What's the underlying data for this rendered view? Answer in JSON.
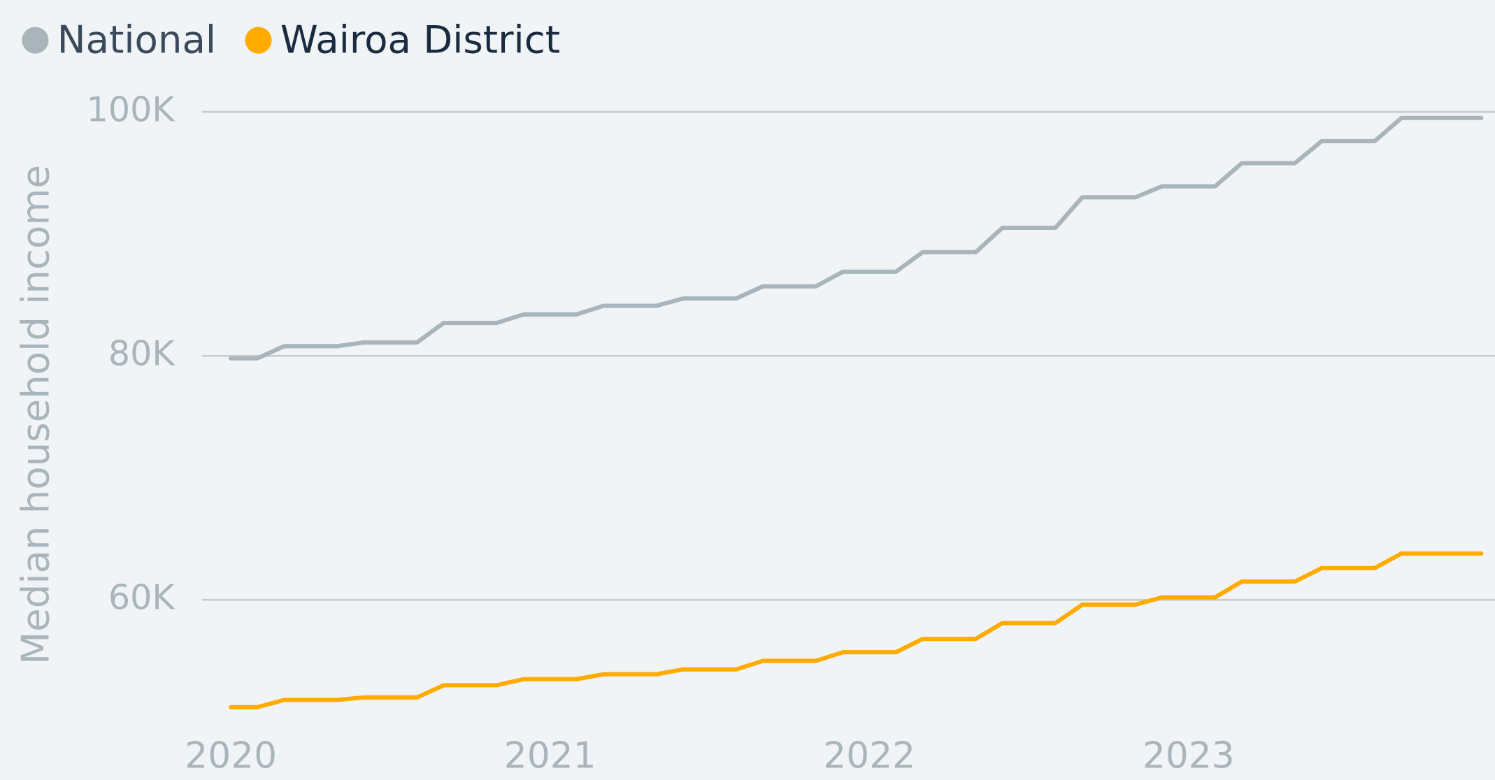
{
  "chart_data": {
    "type": "line",
    "y_label": "Median household income",
    "x": [
      2020,
      2020.083,
      2020.167,
      2020.25,
      2020.333,
      2020.417,
      2020.5,
      2020.583,
      2020.667,
      2020.75,
      2020.833,
      2020.917,
      2021,
      2021.083,
      2021.167,
      2021.25,
      2021.333,
      2021.417,
      2021.5,
      2021.583,
      2021.667,
      2021.75,
      2021.833,
      2021.917,
      2022,
      2022.083,
      2022.167,
      2022.25,
      2022.333,
      2022.417,
      2022.5,
      2022.583,
      2022.667,
      2022.75,
      2022.833,
      2022.917,
      2023,
      2023.083,
      2023.167,
      2023.25,
      2023.333,
      2023.417,
      2023.5,
      2023.583,
      2023.667,
      2023.75,
      2023.833,
      2023.917
    ],
    "series": [
      {
        "name": "National",
        "color": "#aab5bb",
        "values": [
          79800,
          79800,
          80800,
          80800,
          80800,
          81100,
          81100,
          81100,
          82700,
          82700,
          82700,
          83400,
          83400,
          83400,
          84100,
          84100,
          84100,
          84700,
          84700,
          84700,
          85700,
          85700,
          85700,
          86900,
          86900,
          86900,
          88500,
          88500,
          88500,
          90500,
          90500,
          90500,
          93000,
          93000,
          93000,
          93900,
          93900,
          93900,
          95800,
          95800,
          95800,
          97600,
          97600,
          97600,
          99500,
          99500,
          99500,
          99500
        ]
      },
      {
        "name": "Wairoa District",
        "color": "#ffab00",
        "values": [
          51200,
          51200,
          51800,
          51800,
          51800,
          52000,
          52000,
          52000,
          53000,
          53000,
          53000,
          53500,
          53500,
          53500,
          53900,
          53900,
          53900,
          54300,
          54300,
          54300,
          55000,
          55000,
          55000,
          55700,
          55700,
          55700,
          56800,
          56800,
          56800,
          58100,
          58100,
          58100,
          59600,
          59600,
          59600,
          60200,
          60200,
          60200,
          61500,
          61500,
          61500,
          62600,
          62600,
          62600,
          63800,
          63800,
          63800,
          63800
        ]
      }
    ],
    "xlim": [
      2019.91,
      2023.96
    ],
    "xticks": [
      2020,
      2021,
      2022,
      2023
    ],
    "ylim": [
      49000,
      102000
    ],
    "yticks": [
      {
        "value": 60000,
        "label": "60K"
      },
      {
        "value": 80000,
        "label": "80K"
      },
      {
        "value": 100000,
        "label": "100K"
      }
    ],
    "grid": true,
    "legend": "top-left"
  }
}
